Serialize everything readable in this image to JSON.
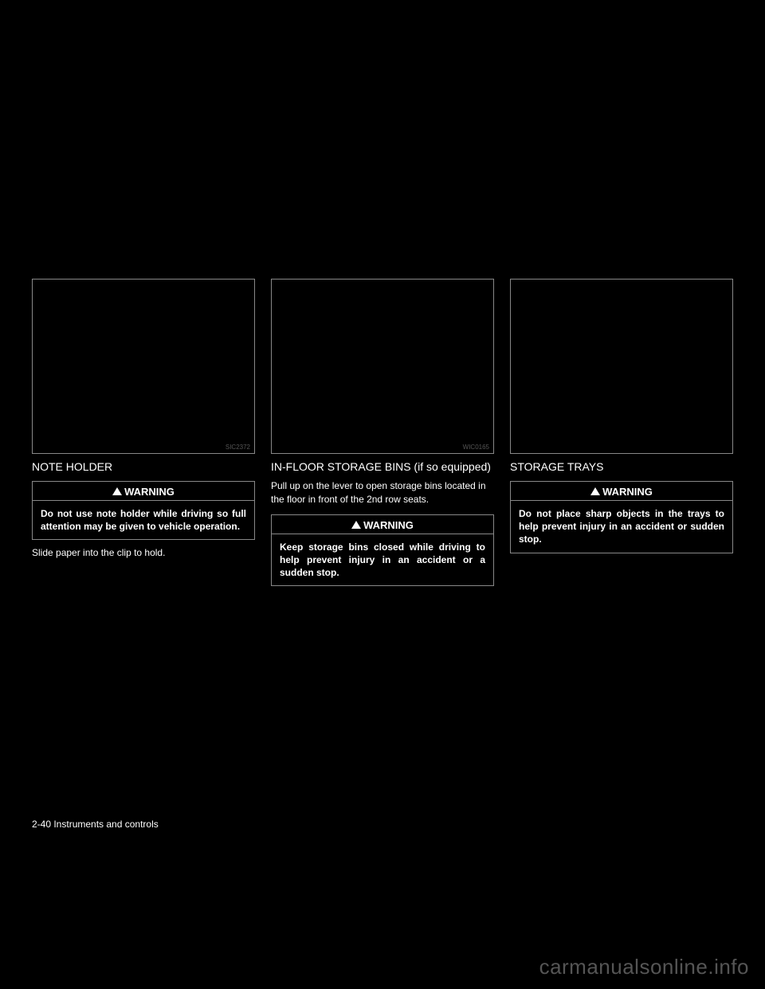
{
  "columns": {
    "col1": {
      "image_label": "SIC2372",
      "title": "NOTE HOLDER",
      "warning": {
        "header": "WARNING",
        "body": "Do not use note holder while driving so full attention may be given to vehicle operation."
      },
      "body_text": "Slide paper into the clip to hold."
    },
    "col2": {
      "image_label": "WIC0165",
      "title": "IN-FLOOR STORAGE BINS (if so equipped)",
      "body_text": "Pull up on the lever to open storage bins located in the floor in front of the 2nd row seats.",
      "warning": {
        "header": "WARNING",
        "body": "Keep storage bins closed while driving to help prevent injury in an accident or a sudden stop."
      }
    },
    "col3": {
      "image_label": "",
      "title": "STORAGE TRAYS",
      "warning": {
        "header": "WARNING",
        "body": "Do not place sharp objects in the trays to help prevent injury in an accident or sudden stop."
      }
    }
  },
  "footer": "2-40 Instruments and controls",
  "watermark": "carmanualsonline.info",
  "colors": {
    "background": "#000000",
    "text": "#ffffff",
    "border": "#888888",
    "watermark": "#555555"
  }
}
